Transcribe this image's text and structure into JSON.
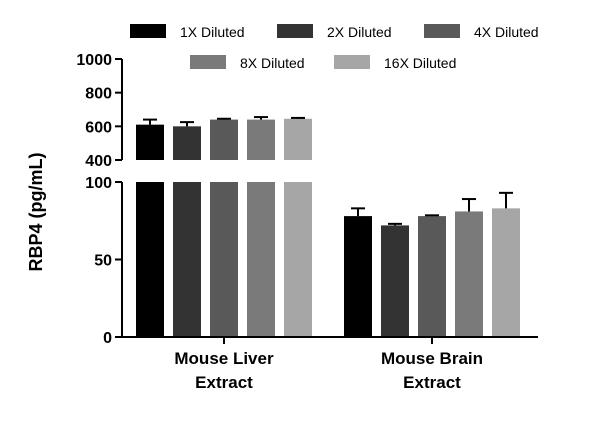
{
  "chart_data": {
    "type": "bar",
    "title": "",
    "xlabel": "",
    "ylabel": "RBP4 (pg/mL)",
    "categories": [
      {
        "line1": "Mouse Liver",
        "line2": "Extract"
      },
      {
        "line1": "Mouse Brain",
        "line2": "Extract"
      }
    ],
    "axis_break": {
      "lower_range": [
        0,
        100
      ],
      "upper_range": [
        400,
        1000
      ],
      "lower_ticks": [
        "0",
        "50",
        "100"
      ],
      "upper_ticks": [
        "400",
        "600",
        "800",
        "1000"
      ]
    },
    "series": [
      {
        "name": "1X Diluted",
        "color": "#000000",
        "values": [
          610,
          78
        ],
        "errors": [
          30,
          5
        ]
      },
      {
        "name": "2X Diluted",
        "color": "#333333",
        "values": [
          600,
          72
        ],
        "errors": [
          25,
          1
        ]
      },
      {
        "name": "4X Diluted",
        "color": "#595959",
        "values": [
          640,
          78
        ],
        "errors": [
          5,
          0.5
        ]
      },
      {
        "name": "8X Diluted",
        "color": "#7a7a7a",
        "values": [
          640,
          81
        ],
        "errors": [
          15,
          8
        ]
      },
      {
        "name": "16X Diluted",
        "color": "#a6a6a6",
        "values": [
          645,
          83
        ],
        "errors": [
          5,
          10
        ]
      }
    ],
    "legend_position": "top"
  }
}
